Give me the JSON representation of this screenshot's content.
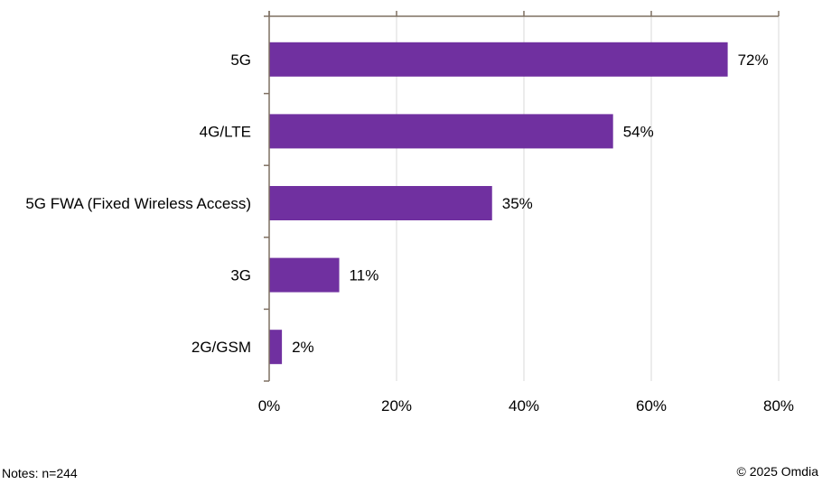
{
  "chart_data": {
    "type": "bar",
    "orientation": "horizontal",
    "categories": [
      "5G",
      "4G/LTE",
      "5G FWA (Fixed Wireless Access)",
      "3G",
      "2G/GSM"
    ],
    "values": [
      72,
      54,
      35,
      11,
      2
    ],
    "value_labels": [
      "72%",
      "54%",
      "35%",
      "11%",
      "2%"
    ],
    "xlim": [
      0,
      80
    ],
    "xticks": [
      0,
      20,
      40,
      60,
      80
    ],
    "xtick_labels": [
      "0%",
      "20%",
      "40%",
      "60%",
      "80%"
    ],
    "bar_color": "#7030a0",
    "axis_color": "#7f7062",
    "grid": true,
    "grid_color": "#d9d9d9",
    "title": "",
    "xlabel": "",
    "ylabel": ""
  },
  "footer": {
    "notes": "Notes: n=244",
    "copyright": "© 2025 Omdia"
  }
}
